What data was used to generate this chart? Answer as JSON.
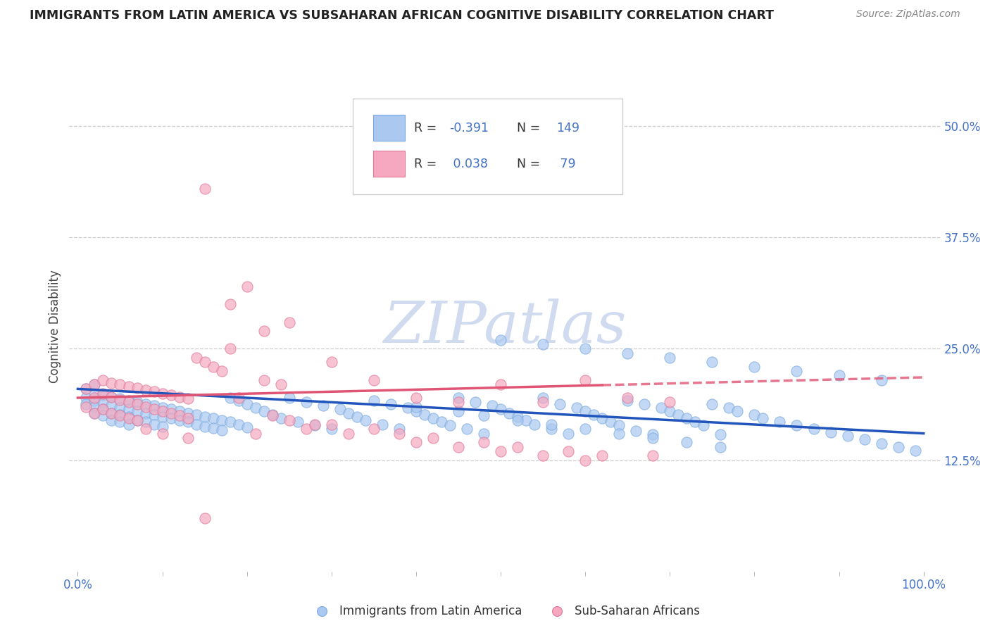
{
  "title": "IMMIGRANTS FROM LATIN AMERICA VS SUBSAHARAN AFRICAN COGNITIVE DISABILITY CORRELATION CHART",
  "source": "Source: ZipAtlas.com",
  "ylabel": "Cognitive Disability",
  "ytick_labels": [
    "12.5%",
    "25.0%",
    "37.5%",
    "50.0%"
  ],
  "ytick_values": [
    0.125,
    0.25,
    0.375,
    0.5
  ],
  "ymin": 0.0,
  "ymax": 0.55,
  "xmin": -0.01,
  "xmax": 1.02,
  "blue_R": -0.391,
  "blue_N": 149,
  "pink_R": 0.038,
  "pink_N": 79,
  "blue_label": "Immigrants from Latin America",
  "pink_label": "Sub-Saharan Africans",
  "blue_color": "#aac8f0",
  "blue_edge": "#7aaae0",
  "pink_color": "#f5a8c0",
  "pink_edge": "#e07898",
  "blue_line_color": "#2255bb",
  "pink_line_color": "#e05575",
  "watermark_color": "#ccd8ee",
  "title_color": "#222222",
  "source_color": "#888888",
  "axis_color": "#4472c4",
  "bg_color": "#ffffff",
  "grid_color": "#cccccc",
  "blue_trend_start_x": 0.0,
  "blue_trend_end_x": 1.0,
  "blue_trend_start_y": 0.205,
  "blue_trend_end_y": 0.155,
  "pink_trend_solid_end_x": 0.62,
  "pink_trend_start_x": 0.0,
  "pink_trend_end_x": 1.0,
  "pink_trend_start_y": 0.195,
  "pink_trend_end_y": 0.218,
  "blue_x": [
    0.01,
    0.01,
    0.01,
    0.02,
    0.02,
    0.02,
    0.02,
    0.02,
    0.03,
    0.03,
    0.03,
    0.03,
    0.04,
    0.04,
    0.04,
    0.04,
    0.05,
    0.05,
    0.05,
    0.05,
    0.06,
    0.06,
    0.06,
    0.06,
    0.07,
    0.07,
    0.07,
    0.08,
    0.08,
    0.08,
    0.09,
    0.09,
    0.09,
    0.1,
    0.1,
    0.1,
    0.11,
    0.11,
    0.12,
    0.12,
    0.13,
    0.13,
    0.14,
    0.14,
    0.15,
    0.15,
    0.16,
    0.16,
    0.17,
    0.17,
    0.18,
    0.18,
    0.19,
    0.19,
    0.2,
    0.2,
    0.21,
    0.22,
    0.23,
    0.24,
    0.25,
    0.26,
    0.27,
    0.28,
    0.29,
    0.3,
    0.31,
    0.32,
    0.33,
    0.34,
    0.35,
    0.36,
    0.37,
    0.38,
    0.39,
    0.4,
    0.41,
    0.42,
    0.43,
    0.44,
    0.45,
    0.46,
    0.47,
    0.48,
    0.49,
    0.5,
    0.51,
    0.52,
    0.53,
    0.54,
    0.55,
    0.56,
    0.57,
    0.58,
    0.59,
    0.6,
    0.61,
    0.62,
    0.63,
    0.64,
    0.65,
    0.66,
    0.67,
    0.68,
    0.69,
    0.7,
    0.71,
    0.72,
    0.73,
    0.74,
    0.75,
    0.76,
    0.77,
    0.78,
    0.8,
    0.81,
    0.83,
    0.85,
    0.87,
    0.89,
    0.91,
    0.93,
    0.95,
    0.97,
    0.99,
    0.5,
    0.55,
    0.6,
    0.65,
    0.7,
    0.75,
    0.8,
    0.85,
    0.9,
    0.95,
    0.4,
    0.45,
    0.48,
    0.52,
    0.56,
    0.6,
    0.64,
    0.68,
    0.72,
    0.76
  ],
  "blue_y": [
    0.195,
    0.205,
    0.188,
    0.192,
    0.2,
    0.185,
    0.21,
    0.178,
    0.198,
    0.19,
    0.182,
    0.175,
    0.196,
    0.186,
    0.178,
    0.17,
    0.194,
    0.184,
    0.176,
    0.168,
    0.192,
    0.182,
    0.174,
    0.165,
    0.19,
    0.18,
    0.17,
    0.188,
    0.178,
    0.168,
    0.186,
    0.176,
    0.165,
    0.184,
    0.174,
    0.163,
    0.182,
    0.172,
    0.18,
    0.17,
    0.178,
    0.168,
    0.176,
    0.165,
    0.174,
    0.163,
    0.172,
    0.161,
    0.17,
    0.159,
    0.195,
    0.168,
    0.192,
    0.165,
    0.188,
    0.162,
    0.184,
    0.18,
    0.176,
    0.172,
    0.195,
    0.168,
    0.19,
    0.164,
    0.186,
    0.16,
    0.182,
    0.178,
    0.174,
    0.17,
    0.192,
    0.165,
    0.188,
    0.16,
    0.184,
    0.18,
    0.176,
    0.172,
    0.168,
    0.164,
    0.195,
    0.16,
    0.19,
    0.155,
    0.186,
    0.182,
    0.178,
    0.174,
    0.17,
    0.165,
    0.195,
    0.16,
    0.188,
    0.155,
    0.184,
    0.18,
    0.176,
    0.172,
    0.168,
    0.164,
    0.192,
    0.158,
    0.188,
    0.154,
    0.184,
    0.18,
    0.176,
    0.172,
    0.168,
    0.164,
    0.188,
    0.154,
    0.184,
    0.18,
    0.176,
    0.172,
    0.168,
    0.164,
    0.16,
    0.156,
    0.152,
    0.148,
    0.144,
    0.14,
    0.136,
    0.26,
    0.255,
    0.25,
    0.245,
    0.24,
    0.235,
    0.23,
    0.225,
    0.22,
    0.215,
    0.185,
    0.18,
    0.175,
    0.17,
    0.165,
    0.16,
    0.155,
    0.15,
    0.145,
    0.14
  ],
  "pink_x": [
    0.01,
    0.01,
    0.02,
    0.02,
    0.02,
    0.03,
    0.03,
    0.03,
    0.04,
    0.04,
    0.04,
    0.05,
    0.05,
    0.05,
    0.06,
    0.06,
    0.06,
    0.07,
    0.07,
    0.07,
    0.08,
    0.08,
    0.09,
    0.09,
    0.1,
    0.1,
    0.11,
    0.11,
    0.12,
    0.12,
    0.13,
    0.13,
    0.14,
    0.15,
    0.16,
    0.17,
    0.18,
    0.19,
    0.2,
    0.21,
    0.22,
    0.23,
    0.24,
    0.25,
    0.27,
    0.3,
    0.32,
    0.35,
    0.38,
    0.4,
    0.42,
    0.45,
    0.48,
    0.5,
    0.52,
    0.55,
    0.58,
    0.6,
    0.62,
    0.65,
    0.68,
    0.7,
    0.15,
    0.18,
    0.22,
    0.25,
    0.28,
    0.08,
    0.1,
    0.13,
    0.3,
    0.35,
    0.4,
    0.45,
    0.5,
    0.55,
    0.6,
    0.15
  ],
  "pink_y": [
    0.205,
    0.185,
    0.21,
    0.195,
    0.178,
    0.215,
    0.2,
    0.182,
    0.212,
    0.196,
    0.178,
    0.21,
    0.193,
    0.175,
    0.208,
    0.19,
    0.172,
    0.206,
    0.188,
    0.17,
    0.204,
    0.185,
    0.202,
    0.182,
    0.2,
    0.18,
    0.198,
    0.178,
    0.196,
    0.175,
    0.194,
    0.172,
    0.24,
    0.235,
    0.23,
    0.225,
    0.3,
    0.195,
    0.32,
    0.155,
    0.215,
    0.175,
    0.21,
    0.28,
    0.16,
    0.235,
    0.155,
    0.215,
    0.155,
    0.195,
    0.15,
    0.19,
    0.145,
    0.21,
    0.14,
    0.19,
    0.135,
    0.215,
    0.13,
    0.195,
    0.13,
    0.19,
    0.43,
    0.25,
    0.27,
    0.17,
    0.165,
    0.16,
    0.155,
    0.15,
    0.165,
    0.16,
    0.145,
    0.14,
    0.135,
    0.13,
    0.125,
    0.06
  ]
}
